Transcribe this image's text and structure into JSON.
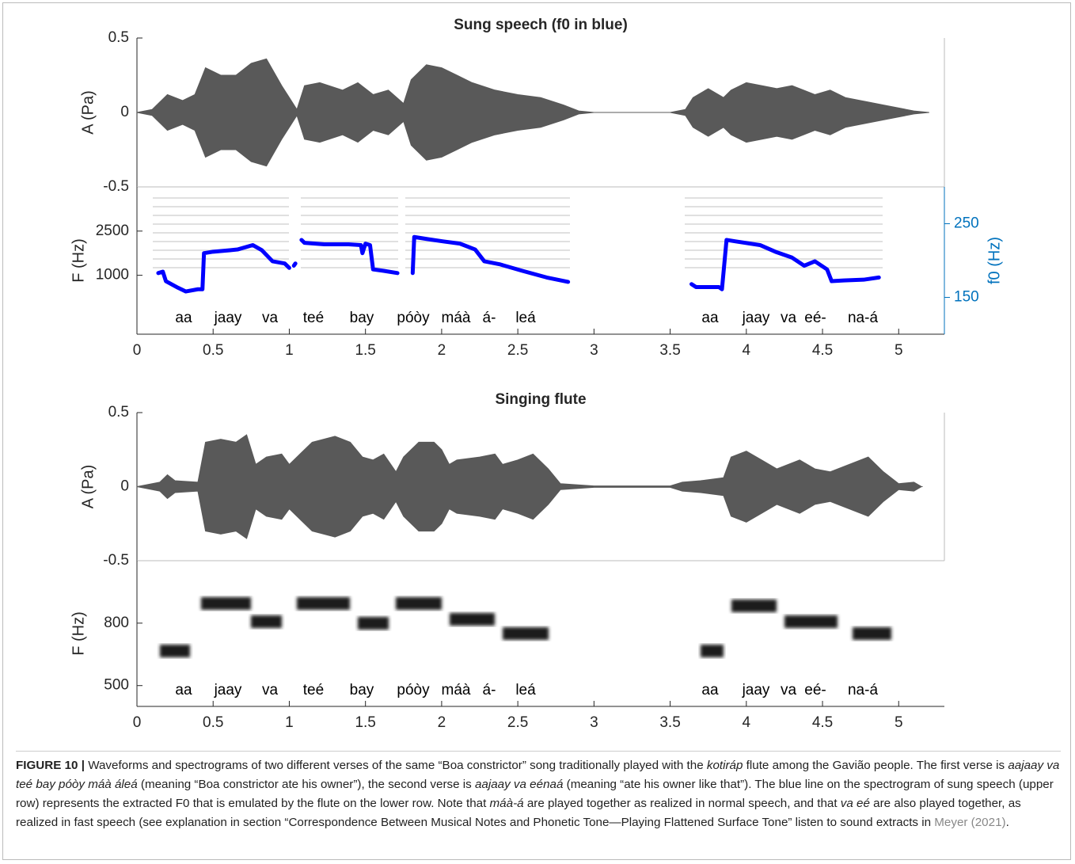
{
  "chart_data": [
    {
      "type": "waveform",
      "title": "Sung speech (f0 in blue)",
      "ylabel": "A (Pa)",
      "color": "#595959",
      "xlim": [
        0,
        5.3
      ],
      "ylim": [
        -0.5,
        0.5
      ],
      "yticks": [
        0.5,
        0,
        -0.5
      ],
      "x": [
        0,
        0.1,
        0.2,
        0.3,
        0.38,
        0.45,
        0.55,
        0.65,
        0.75,
        0.85,
        0.95,
        1.0,
        1.05,
        1.1,
        1.2,
        1.35,
        1.45,
        1.55,
        1.65,
        1.75,
        1.8,
        1.9,
        2.0,
        2.1,
        2.2,
        2.35,
        2.5,
        2.65,
        2.8,
        2.9,
        3.0,
        3.5,
        3.6,
        3.65,
        3.75,
        3.85,
        3.9,
        4.0,
        4.1,
        4.2,
        4.3,
        4.45,
        4.55,
        4.65,
        4.75,
        4.9,
        5.1,
        5.2
      ],
      "values": [
        0,
        0.02,
        0.12,
        0.08,
        0.12,
        0.3,
        0.25,
        0.25,
        0.33,
        0.36,
        0.18,
        0.1,
        0.02,
        0.18,
        0.2,
        0.15,
        0.2,
        0.12,
        0.15,
        0.06,
        0.22,
        0.32,
        0.3,
        0.25,
        0.2,
        0.15,
        0.12,
        0.1,
        0.05,
        0.01,
        0,
        0,
        0.02,
        0.1,
        0.16,
        0.1,
        0.15,
        0.2,
        0.18,
        0.16,
        0.18,
        0.12,
        0.15,
        0.1,
        0.08,
        0.05,
        0.01,
        0
      ]
    },
    {
      "type": "spectrogram",
      "ylabel": "F (Hz)",
      "y2label": "f0 (Hz)",
      "y2color": "#0072bd",
      "xlim": [
        0,
        5.3
      ],
      "xticks": [
        0,
        0.5,
        1,
        1.5,
        2,
        2.5,
        3,
        3.5,
        4,
        4.5,
        5
      ],
      "ylim": [
        -1000,
        4000
      ],
      "yticks": [
        2500,
        1000
      ],
      "y2lim": [
        100,
        300
      ],
      "y2ticks": [
        250,
        150
      ],
      "series": [
        {
          "color": "#0000ff",
          "axis": "y2",
          "x": [
            0.14,
            0.17,
            0.19,
            0.27,
            0.32,
            0.4,
            0.43,
            0.44,
            0.5,
            0.61,
            0.66,
            0.76,
            0.82,
            0.89,
            0.97,
            1.0,
            1.02,
            1.03,
            1.04,
            1.06,
            1.08,
            1.1,
            1.23,
            1.39,
            1.47,
            1.48,
            1.5,
            1.53,
            1.55,
            1.62,
            1.71,
            1.76,
            1.81,
            1.82,
            1.91,
            2.01,
            2.12,
            2.22,
            2.28,
            2.38,
            2.53,
            2.69,
            2.83,
            3.2,
            3.64,
            3.67,
            3.82,
            3.84,
            3.87,
            3.93,
            4.09,
            4.19,
            4.3,
            4.38,
            4.45,
            4.53,
            4.56,
            4.64,
            4.77,
            4.87
          ],
          "values": [
            183,
            185,
            172,
            163,
            158,
            161,
            161,
            210,
            212,
            214,
            215,
            221,
            214,
            199,
            196,
            190,
            null,
            193,
            196,
            null,
            228,
            224,
            222,
            222,
            221,
            210,
            223,
            221,
            188,
            186,
            183,
            null,
            183,
            232,
            229,
            226,
            223,
            215,
            199,
            195,
            186,
            177,
            171,
            null,
            168,
            164,
            164,
            161,
            228,
            226,
            221,
            212,
            204,
            193,
            199,
            188,
            172,
            173,
            174,
            177
          ]
        }
      ],
      "syllables": [
        "aa",
        "jaay",
        "va",
        "teé",
        "bay",
        "póòy",
        "máà",
        "á-",
        "leá",
        "aa",
        "jaay",
        "va",
        "eé-",
        "na-á"
      ]
    },
    {
      "type": "waveform",
      "title": "Singing flute",
      "ylabel": "A (Pa)",
      "color": "#595959",
      "xlim": [
        0,
        5.3
      ],
      "ylim": [
        -0.5,
        0.5
      ],
      "yticks": [
        0.5,
        0,
        -0.5
      ],
      "x": [
        0,
        0.15,
        0.2,
        0.25,
        0.4,
        0.45,
        0.55,
        0.65,
        0.72,
        0.78,
        0.85,
        0.95,
        1.0,
        1.05,
        1.15,
        1.3,
        1.4,
        1.48,
        1.55,
        1.62,
        1.7,
        1.75,
        1.85,
        1.95,
        2.0,
        2.05,
        2.1,
        2.25,
        2.35,
        2.4,
        2.5,
        2.6,
        2.7,
        2.78,
        3.0,
        3.5,
        3.58,
        3.7,
        3.85,
        3.9,
        4.0,
        4.1,
        4.2,
        4.35,
        4.45,
        4.55,
        4.7,
        4.8,
        4.9,
        5.0,
        5.1,
        5.15
      ],
      "values": [
        0,
        0.03,
        0.08,
        0.04,
        0.03,
        0.3,
        0.32,
        0.3,
        0.35,
        0.15,
        0.2,
        0.22,
        0.15,
        0.2,
        0.3,
        0.34,
        0.3,
        0.2,
        0.18,
        0.22,
        0.1,
        0.2,
        0.3,
        0.3,
        0.25,
        0.15,
        0.18,
        0.2,
        0.22,
        0.15,
        0.18,
        0.22,
        0.12,
        0.02,
        0.005,
        0.005,
        0.03,
        0.04,
        0.06,
        0.2,
        0.24,
        0.18,
        0.12,
        0.18,
        0.12,
        0.1,
        0.16,
        0.2,
        0.1,
        0.02,
        0.03,
        0
      ]
    },
    {
      "type": "spectrogram",
      "ylabel": "F (Hz)",
      "xlim": [
        0,
        5.3
      ],
      "xticks": [
        0,
        0.5,
        1,
        1.5,
        2,
        2.5,
        3,
        3.5,
        4,
        4.5,
        5
      ],
      "ylim": [
        400,
        1100
      ],
      "yticks": [
        800,
        500
      ],
      "syllables": [
        "aa",
        "jaay",
        "va",
        "teé",
        "bay",
        "póòy",
        "máà",
        "á-",
        "leá",
        "aa",
        "jaay",
        "va",
        "eé-",
        "na-á"
      ]
    }
  ],
  "caption": {
    "label": "FIGURE 10 |",
    "parts": [
      " Waveforms and spectrograms of two different verses of the same “Boa constrictor” song traditionally played with the ",
      "kotiráp",
      " flute among the Gavião people. The first verse is ",
      "aajaay va teé bay póòy máà áleá",
      " (meaning “Boa constrictor ate his owner”), the second verse is ",
      "aajaay va eénaá",
      " (meaning “ate his owner like that”). The blue line on the spectrogram of sung speech (upper row) represents the extracted F0 that is emulated by the flute on the lower row. Note that ",
      "máà-á",
      " are played together as realized in normal speech, and that ",
      "va eé",
      " are also played together, as realized in fast speech (see explanation in section “Correspondence Between Musical Notes and Phonetic Tone—Playing Flattened Surface Tone” listen to sound extracts in ",
      "Meyer (2021)",
      "."
    ]
  }
}
